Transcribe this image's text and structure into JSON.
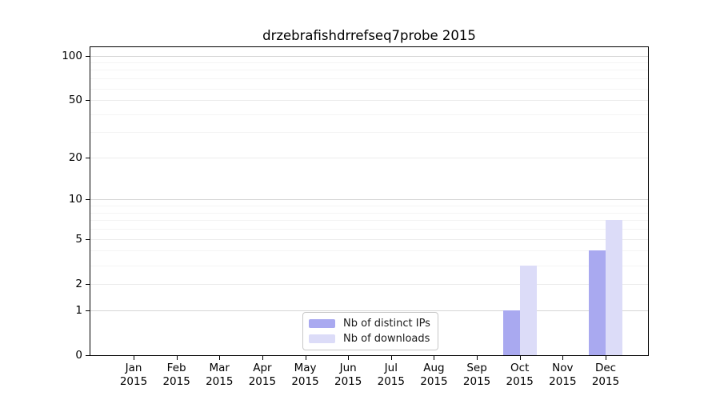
{
  "chart_data": {
    "type": "bar",
    "title": "drzebrafishdrrefseq7probe 2015",
    "year": "2015",
    "categories": [
      "Jan",
      "Feb",
      "Mar",
      "Apr",
      "May",
      "Jun",
      "Jul",
      "Aug",
      "Sep",
      "Oct",
      "Nov",
      "Dec"
    ],
    "series": [
      {
        "name": "Nb of distinct IPs",
        "color": "#a9a9f0",
        "values": [
          0,
          0,
          0,
          0,
          0,
          0,
          0,
          0,
          0,
          1,
          0,
          4
        ]
      },
      {
        "name": "Nb of downloads",
        "color": "#dcdcf8",
        "values": [
          0,
          0,
          0,
          0,
          0,
          0,
          0,
          0,
          0,
          3,
          0,
          7
        ]
      }
    ],
    "y_axis": {
      "scale": "log1p",
      "ylim": [
        0,
        100
      ],
      "major_ticks": [
        0,
        1,
        2,
        5,
        10,
        20,
        50,
        100
      ],
      "minor_gridlines": [
        3,
        4,
        6,
        7,
        8,
        9,
        30,
        40,
        60,
        70,
        80,
        90
      ]
    },
    "legend": {
      "position": "bottom-center-inside"
    },
    "grid": true
  },
  "colors": {
    "background": "#ffffff",
    "spine": "#000000",
    "text": "#000000",
    "grid_decade": "#d6d6d6",
    "grid_major": "#ebebeb",
    "grid_minor": "#f4f4f4",
    "legend_border": "#c8c8c8",
    "bar_distinct_ips": "#a9a9f0",
    "bar_downloads": "#dcdcf8"
  }
}
